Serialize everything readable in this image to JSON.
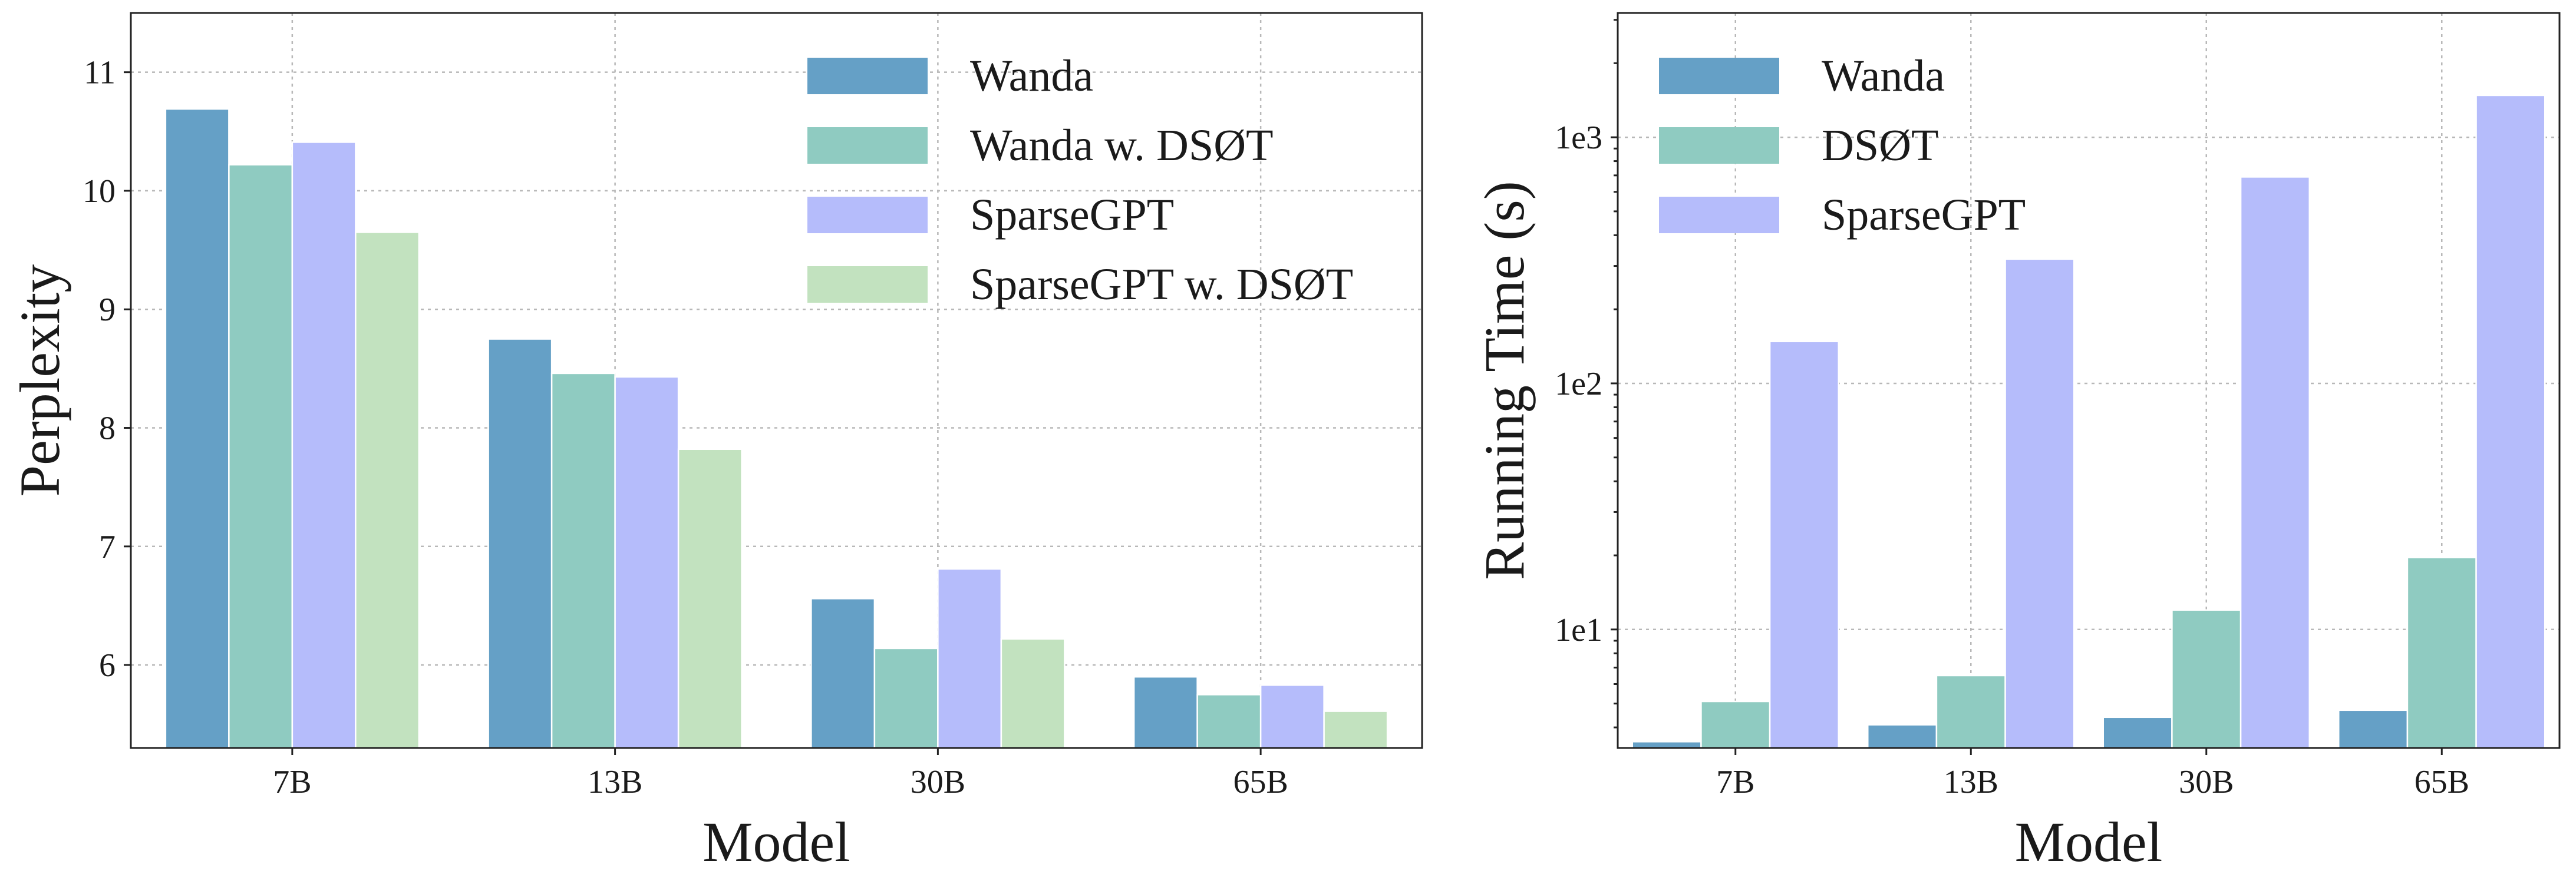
{
  "chart_data": [
    {
      "type": "bar",
      "title": "",
      "xlabel": "Model",
      "ylabel": "Perplexity",
      "yscale": "linear",
      "categories": [
        "7B",
        "13B",
        "30B",
        "65B"
      ],
      "ylim": [
        5.3,
        11.5
      ],
      "yticks": [
        6,
        7,
        8,
        9,
        10,
        11
      ],
      "ytick_labels": [
        "6",
        "7",
        "8",
        "9",
        "10",
        "11"
      ],
      "legend_position": "top-right",
      "grid": true,
      "series": [
        {
          "name": "Wanda",
          "color": "#65a0c6",
          "values": [
            10.69,
            8.75,
            6.56,
            5.9
          ]
        },
        {
          "name": "Wanda w. DSØT",
          "color": "#8fcbc1",
          "values": [
            10.22,
            8.46,
            6.14,
            5.75
          ]
        },
        {
          "name": "SparseGPT",
          "color": "#b5bcfb",
          "values": [
            10.41,
            8.43,
            6.81,
            5.83
          ]
        },
        {
          "name": "SparseGPT w. DSØT",
          "color": "#c2e2bf",
          "values": [
            9.65,
            7.82,
            6.22,
            5.61
          ]
        }
      ]
    },
    {
      "type": "bar",
      "title": "",
      "xlabel": "Model",
      "ylabel": "Running Time (s)",
      "yscale": "log",
      "categories": [
        "7B",
        "13B",
        "30B",
        "65B"
      ],
      "ylim": [
        3.3,
        3200
      ],
      "yticks": [
        10,
        100,
        1000
      ],
      "ytick_labels": [
        "1e1",
        "1e2",
        "1e3"
      ],
      "legend_position": "top-left",
      "grid": true,
      "series": [
        {
          "name": "Wanda",
          "color": "#65a0c6",
          "values": [
            3.5,
            4.1,
            4.4,
            4.7
          ]
        },
        {
          "name": "DSØT",
          "color": "#8fcbc1",
          "values": [
            5.1,
            6.5,
            12.0,
            19.6
          ]
        },
        {
          "name": "SparseGPT",
          "color": "#b5bcfb",
          "values": [
            148,
            320,
            690,
            1480
          ]
        }
      ]
    }
  ]
}
